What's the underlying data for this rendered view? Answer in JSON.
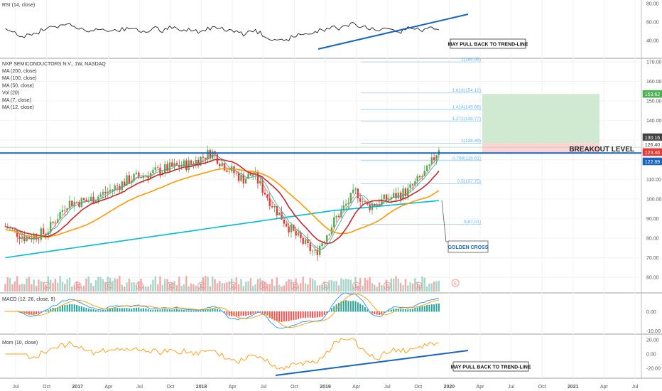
{
  "colors": {
    "bull": "#26a69a",
    "bear": "#ef5350",
    "ma200": "#00bcd4",
    "ma100": "#ff9800",
    "ma50": "#c62828",
    "ma7": "#e57373",
    "ma12": "#26a69a",
    "trend": "#1565c0",
    "fib": "#90caf9",
    "target": "#c8e6c9",
    "stop": "#ffcdd2"
  },
  "panels": {
    "rsi": {
      "label": "RSI (14, close)",
      "ticks": [
        "80.00",
        "60.00",
        "40.00"
      ],
      "note": "MAY PULL BACK TO TREND-LINE"
    },
    "main": {
      "title": "NXP SEMICONDUCTORS N.V., 1W, NASDAQ",
      "legend": [
        "MA (200, close)",
        "MA (100, close)",
        "MA (50, close)",
        "Vol (20)",
        "MA (7, close)",
        "MA (12, close)"
      ],
      "ticks": [
        "170.00",
        "160.00",
        "150.00",
        "140.00",
        "130.00",
        "120.00",
        "110.00",
        "100.00",
        "90.00",
        "80.00",
        "70.00",
        "60.00"
      ],
      "breakout_label": "BREAKOUT LEVEL",
      "golden_cross_label": "GOLDEN CROSS",
      "price_tags": [
        {
          "text": "153.62",
          "color": "#4caf50"
        },
        {
          "text": "130.16",
          "color": "#424242"
        },
        {
          "text": "126.40",
          "color": "#ffffff"
        },
        {
          "text": "123.46",
          "color": "#e53935"
        },
        {
          "text": "122.89",
          "color": "#1565c0"
        }
      ]
    },
    "macd": {
      "label": "MACD (12, 26, close, 9)",
      "ticks": [
        "0.00",
        "-10.00"
      ]
    },
    "mom": {
      "label": "Mom (10, close)",
      "ticks": [
        "20.00",
        "0.00",
        "-20.00"
      ],
      "note": "MAY PULL BACK TO TREND-LINE"
    }
  },
  "time_axis": [
    "Jul",
    "Oct",
    "2017",
    "Apr",
    "Jul",
    "Oct",
    "2018",
    "Apr",
    "Jul",
    "Oct",
    "2019",
    "Apr",
    "Jul",
    "Oct",
    "2020",
    "Apr",
    "Jul",
    "Oct",
    "2021",
    "Apr",
    "Jul"
  ],
  "chart_data": {
    "type": "candlestick",
    "title": "NXP SEMICONDUCTORS N.V., 1W, NASDAQ",
    "ylim": [
      50,
      175
    ],
    "price_path": [
      {
        "date": "2016-06",
        "close": 86
      },
      {
        "date": "2016-08",
        "close": 80
      },
      {
        "date": "2016-10",
        "close": 83
      },
      {
        "date": "2016-12",
        "close": 98
      },
      {
        "date": "2017-02",
        "close": 99
      },
      {
        "date": "2017-04",
        "close": 104
      },
      {
        "date": "2017-06",
        "close": 110
      },
      {
        "date": "2017-08",
        "close": 113
      },
      {
        "date": "2017-10",
        "close": 116
      },
      {
        "date": "2017-12",
        "close": 118
      },
      {
        "date": "2018-02",
        "close": 124
      },
      {
        "date": "2018-03",
        "close": 118
      },
      {
        "date": "2018-05",
        "close": 110
      },
      {
        "date": "2018-06",
        "close": 113
      },
      {
        "date": "2018-08",
        "close": 96
      },
      {
        "date": "2018-10",
        "close": 82
      },
      {
        "date": "2018-12",
        "close": 72
      },
      {
        "date": "2019-02",
        "close": 90
      },
      {
        "date": "2019-04",
        "close": 104
      },
      {
        "date": "2019-05",
        "close": 96
      },
      {
        "date": "2019-07",
        "close": 100
      },
      {
        "date": "2019-09",
        "close": 104
      },
      {
        "date": "2019-11",
        "close": 115
      },
      {
        "date": "2019-12",
        "close": 126.4
      }
    ],
    "fib_levels": [
      {
        "label": "0(87.01)",
        "value": 87.01
      },
      {
        "label": "0.5(107.75)",
        "value": 107.75
      },
      {
        "label": "0.786(119.61)",
        "value": 119.61
      },
      {
        "label": "1(128.49)",
        "value": 128.49
      },
      {
        "label": "1.272(139.77)",
        "value": 139.77
      },
      {
        "label": "1.414(145.66)",
        "value": 145.66
      },
      {
        "label": "1.618(154.12)",
        "value": 154.12
      },
      {
        "label": "2(169.96)",
        "value": 169.96
      }
    ],
    "breakout_level": 123.46,
    "target": 153.62,
    "stop": 123.46
  }
}
